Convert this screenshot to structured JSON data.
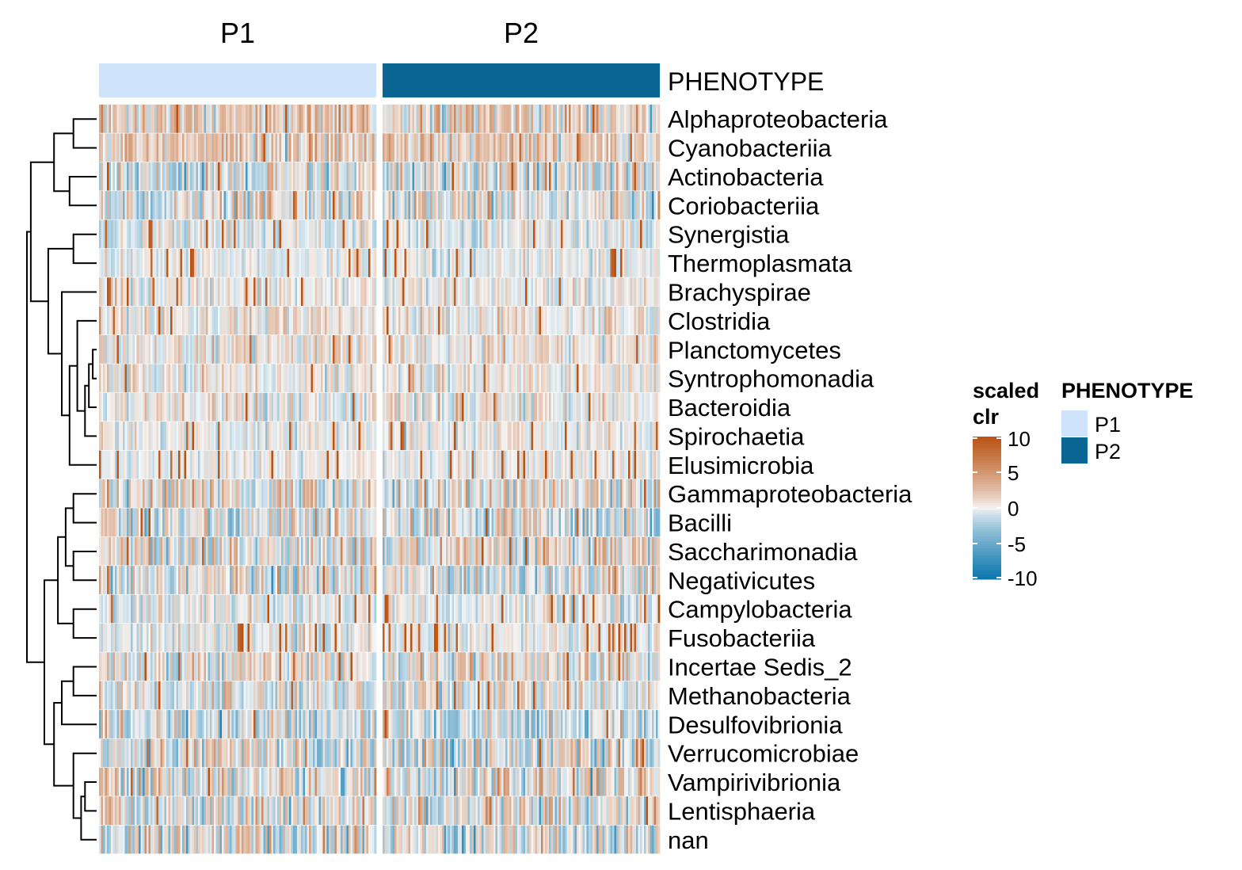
{
  "chart_data": {
    "type": "heatmap",
    "column_groups": [
      {
        "label": "P1",
        "color": "#cfe4fb"
      },
      {
        "label": "P2",
        "color": "#0c6693"
      }
    ],
    "annotation_label": "PHENOTYPE",
    "rows": [
      "Alphaproteobacteria",
      "Cyanobacteriia",
      "Actinobacteria",
      "Coriobacteriia",
      "Synergistia",
      "Thermoplasmata",
      "Brachyspirae",
      "Clostridia",
      "Planctomycetes",
      "Syntrophomonadia",
      "Bacteroidia",
      "Spirochaetia",
      "Elusimicrobia",
      "Gammaproteobacteria",
      "Bacilli",
      "Saccharimonadia",
      "Negativicutes",
      "Campylobacteria",
      "Fusobacteriia",
      "Incertae Sedis_2",
      "Methanobacteria",
      "Desulfovibrionia",
      "Verrucomicrobiae",
      "Vampirivibrionia",
      "Lentisphaeria",
      "nan"
    ],
    "columns_per_group": 140,
    "color_scale": {
      "title": "scaled\nclr",
      "domain": [
        -10,
        10
      ],
      "ticks": [
        10,
        5,
        0,
        -5,
        -10
      ],
      "low_color": "#0a76ad",
      "mid_color": "#f7f7f7",
      "high_color": "#b95313"
    },
    "row_profiles": [
      {
        "bias": 1.4,
        "spread": 2.2,
        "spike": 0.02
      },
      {
        "bias": 1.6,
        "spread": 2.0,
        "spike": 0.02
      },
      {
        "bias": -0.6,
        "spread": 2.6,
        "spike": 0.01
      },
      {
        "bias": -0.3,
        "spread": 2.4,
        "spike": 0.02
      },
      {
        "bias": -0.4,
        "spread": 1.2,
        "spike": 0.06
      },
      {
        "bias": -0.2,
        "spread": 1.0,
        "spike": 0.05
      },
      {
        "bias": 0.0,
        "spread": 1.2,
        "spike": 0.04
      },
      {
        "bias": 0.4,
        "spread": 1.4,
        "spike": 0.02
      },
      {
        "bias": 0.5,
        "spread": 1.4,
        "spike": 0.02
      },
      {
        "bias": 0.3,
        "spread": 1.3,
        "spike": 0.02
      },
      {
        "bias": 0.2,
        "spread": 1.5,
        "spike": 0.02
      },
      {
        "bias": 0.0,
        "spread": 1.1,
        "spike": 0.03
      },
      {
        "bias": -0.1,
        "spread": 0.8,
        "spike": 0.05
      },
      {
        "bias": 0.5,
        "spread": 2.4,
        "spike": 0.01
      },
      {
        "bias": -0.3,
        "spread": 2.4,
        "spike": 0.02
      },
      {
        "bias": 0.1,
        "spread": 2.6,
        "spike": 0.01
      },
      {
        "bias": 0.0,
        "spread": 2.5,
        "spike": 0.01
      },
      {
        "bias": -0.2,
        "spread": 1.3,
        "spike": 0.06
      },
      {
        "bias": -0.2,
        "spread": 1.2,
        "spike": 0.07
      },
      {
        "bias": 0.3,
        "spread": 2.2,
        "spike": 0.02
      },
      {
        "bias": -0.1,
        "spread": 1.9,
        "spike": 0.03
      },
      {
        "bias": -0.9,
        "spread": 2.4,
        "spike": 0.01
      },
      {
        "bias": -0.3,
        "spread": 2.5,
        "spike": 0.01
      },
      {
        "bias": 0.2,
        "spread": 2.5,
        "spike": 0.01
      },
      {
        "bias": 0.2,
        "spread": 2.4,
        "spike": 0.01
      },
      {
        "bias": -0.3,
        "spread": 2.7,
        "spike": 0.01
      }
    ],
    "dendrogram_merges": [
      [
        -1,
        -2
      ],
      [
        -3,
        -4
      ],
      [
        1,
        2
      ],
      [
        -5,
        -6
      ],
      [
        -9,
        -10
      ],
      [
        5,
        -11
      ],
      [
        6,
        -12
      ],
      [
        -8,
        7
      ],
      [
        8,
        -13
      ],
      [
        -7,
        9
      ],
      [
        4,
        10
      ],
      [
        3,
        11
      ],
      [
        -14,
        -15
      ],
      [
        -16,
        -17
      ],
      [
        13,
        14
      ],
      [
        -18,
        -19
      ],
      [
        15,
        16
      ],
      [
        -20,
        -21
      ],
      [
        18,
        -22
      ],
      [
        -24,
        -25
      ],
      [
        20,
        -26
      ],
      [
        -23,
        21
      ],
      [
        19,
        22
      ],
      [
        17,
        23
      ],
      [
        12,
        24
      ]
    ],
    "dendrogram_heights": [
      0.12,
      0.14,
      0.22,
      0.12,
      0.02,
      0.04,
      0.06,
      0.1,
      0.14,
      0.18,
      0.25,
      0.34,
      0.12,
      0.12,
      0.16,
      0.12,
      0.2,
      0.12,
      0.18,
      0.06,
      0.08,
      0.12,
      0.22,
      0.27,
      0.36
    ]
  }
}
